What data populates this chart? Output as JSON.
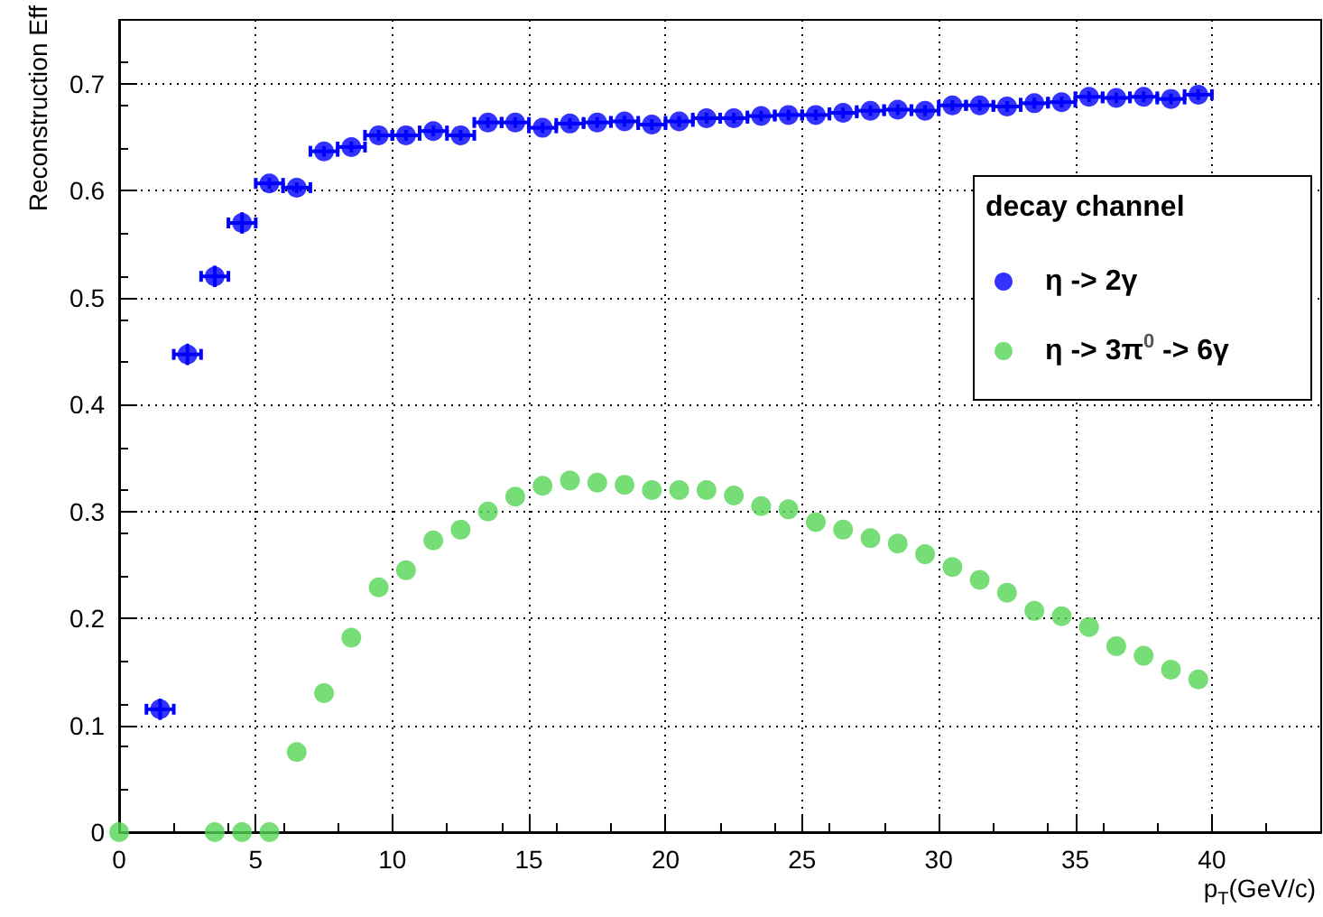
{
  "chart_data": {
    "type": "scatter",
    "xlabel": "p$_{T}$(GeV/c)",
    "ylabel": "Reconstruction Eff",
    "legend_title": "decay channel",
    "xlim": [
      0,
      44
    ],
    "xticks": [
      0,
      5,
      10,
      15,
      20,
      25,
      30,
      35,
      40
    ],
    "ylim": [
      0,
      0.76
    ],
    "yticks": [
      0,
      0.1,
      0.2,
      0.3,
      0.4,
      0.5,
      0.6,
      0.7
    ],
    "grid": true,
    "legend": "right",
    "marker": "circle",
    "series": [
      {
        "name": "η -> 2γ",
        "color": "#0000ff",
        "x": [
          1.5,
          2.5,
          3.5,
          4.5,
          5.5,
          6.5,
          7.5,
          8.5,
          9.5,
          10.5,
          11.5,
          12.5,
          13.5,
          14.5,
          15.5,
          16.5,
          17.5,
          18.5,
          19.5,
          20.5,
          21.5,
          22.5,
          23.5,
          24.5,
          25.5,
          26.5,
          27.5,
          28.5,
          29.5,
          30.5,
          31.5,
          32.5,
          33.5,
          34.5,
          35.5,
          36.5,
          37.5,
          38.5,
          39.5
        ],
        "values": [
          0.115,
          0.447,
          0.52,
          0.57,
          0.607,
          0.603,
          0.637,
          0.641,
          0.652,
          0.652,
          0.656,
          0.652,
          0.664,
          0.664,
          0.659,
          0.663,
          0.664,
          0.665,
          0.662,
          0.665,
          0.668,
          0.668,
          0.67,
          0.671,
          0.671,
          0.673,
          0.675,
          0.676,
          0.675,
          0.68,
          0.68,
          0.679,
          0.682,
          0.683,
          0.688,
          0.687,
          0.688,
          0.686,
          0.69
        ],
        "errors": [
          0.01,
          0.01,
          0.01,
          0.01,
          0.005,
          0.005,
          0.005,
          0.005,
          0.005,
          0.005,
          0.005,
          0.005,
          0.005,
          0.005,
          0.005,
          0.005,
          0.005,
          0.005,
          0.005,
          0.005,
          0.005,
          0.005,
          0.005,
          0.005,
          0.005,
          0.005,
          0.005,
          0.005,
          0.005,
          0.005,
          0.005,
          0.005,
          0.005,
          0.005,
          0.005,
          0.005,
          0.005,
          0.005,
          0.005
        ],
        "xerrors": [
          0.5,
          0.5,
          0.5,
          0.5,
          0.5,
          0.5,
          0.5,
          0.5,
          0.5,
          0.5,
          0.5,
          0.5,
          0.5,
          0.5,
          0.5,
          0.5,
          0.5,
          0.5,
          0.5,
          0.5,
          0.5,
          0.5,
          0.5,
          0.5,
          0.5,
          0.5,
          0.5,
          0.5,
          0.5,
          0.5,
          0.5,
          0.5,
          0.5,
          0.5,
          0.5,
          0.5,
          0.5,
          0.5,
          0.5
        ]
      },
      {
        "name": "η -> 3π$^{0}$ -> 6γ",
        "color": "#55d455",
        "x": [
          0,
          3.5,
          4.5,
          5.5,
          6.5,
          7.5,
          8.5,
          9.5,
          10.5,
          11.5,
          12.5,
          13.5,
          14.5,
          15.5,
          16.5,
          17.5,
          18.5,
          19.5,
          20.5,
          21.5,
          22.5,
          23.5,
          24.5,
          25.5,
          26.5,
          27.5,
          28.5,
          29.5,
          30.5,
          31.5,
          32.5,
          33.5,
          34.5,
          35.5,
          36.5,
          37.5,
          38.5,
          39.5
        ],
        "values": [
          0,
          0,
          0,
          0,
          0.075,
          0.13,
          0.182,
          0.229,
          0.245,
          0.273,
          0.283,
          0.3,
          0.314,
          0.324,
          0.329,
          0.327,
          0.325,
          0.32,
          0.32,
          0.32,
          0.315,
          0.305,
          0.302,
          0.29,
          0.283,
          0.275,
          0.27,
          0.26,
          0.248,
          0.236,
          0.224,
          0.207,
          0.202,
          0.192,
          0.174,
          0.165,
          0.152,
          0.143
        ]
      }
    ]
  }
}
